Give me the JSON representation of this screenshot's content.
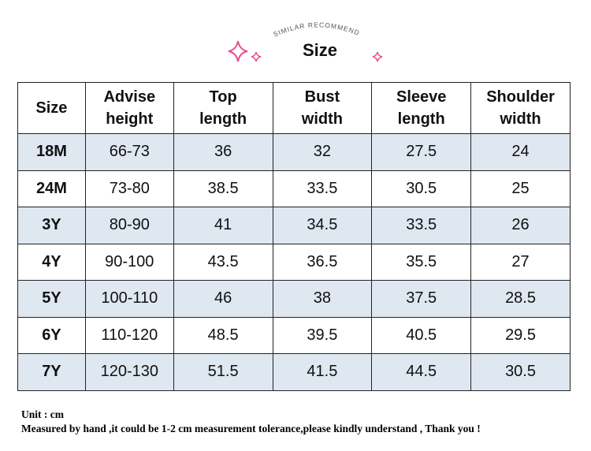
{
  "header": {
    "subtitle": "SIMILAR RECOMMEND",
    "title": "Size"
  },
  "table": {
    "columns": [
      "Size",
      "Advise height",
      "Top length",
      "Bust width",
      "Sleeve length",
      "Shoulder width"
    ],
    "rows": [
      [
        "18M",
        "66-73",
        "36",
        "32",
        "27.5",
        "24"
      ],
      [
        "24M",
        "73-80",
        "38.5",
        "33.5",
        "30.5",
        "25"
      ],
      [
        "3Y",
        "80-90",
        "41",
        "34.5",
        "33.5",
        "26"
      ],
      [
        "4Y",
        "90-100",
        "43.5",
        "36.5",
        "35.5",
        "27"
      ],
      [
        "5Y",
        "100-110",
        "46",
        "38",
        "37.5",
        "28.5"
      ],
      [
        "6Y",
        "110-120",
        "48.5",
        "39.5",
        "40.5",
        "29.5"
      ],
      [
        "7Y",
        "120-130",
        "51.5",
        "41.5",
        "44.5",
        "30.5"
      ]
    ]
  },
  "notes": [
    "Unit : cm",
    "Measured by hand ,it could be 1-2 cm measurement tolerance,please kindly understand , Thank you !"
  ]
}
